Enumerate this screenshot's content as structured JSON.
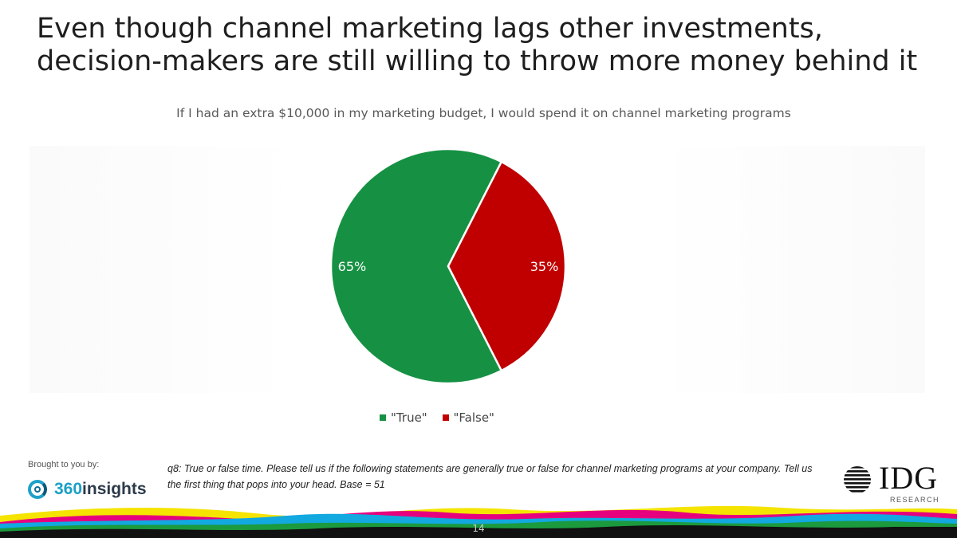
{
  "title": "Even though channel marketing lags other investments, decision-makers are still willing to throw more money behind it",
  "chart_data": {
    "type": "pie",
    "title": "If I had an extra $10,000 in my marketing budget, I would spend it on channel marketing programs",
    "slices": [
      {
        "label": "\"True\"",
        "value": 65,
        "display": "65%",
        "color": "#169143"
      },
      {
        "label": "\"False\"",
        "value": 35,
        "display": "35%",
        "color": "#c00000"
      }
    ],
    "legend_position": "bottom"
  },
  "footer": {
    "brought_by": "Brought to you by:",
    "sponsor_logo_text": "360insights",
    "sponsor_logo_num": "360",
    "sponsor_logo_word": "insights",
    "footnote": "q8: True or false time. Please tell us if the following statements are generally true or false for channel marketing programs at your company. Tell us the first thing that pops into your head. Base = 51",
    "publisher_logo_text": "IDG",
    "publisher_logo_sub": "RESEARCH",
    "page_number": "14"
  }
}
